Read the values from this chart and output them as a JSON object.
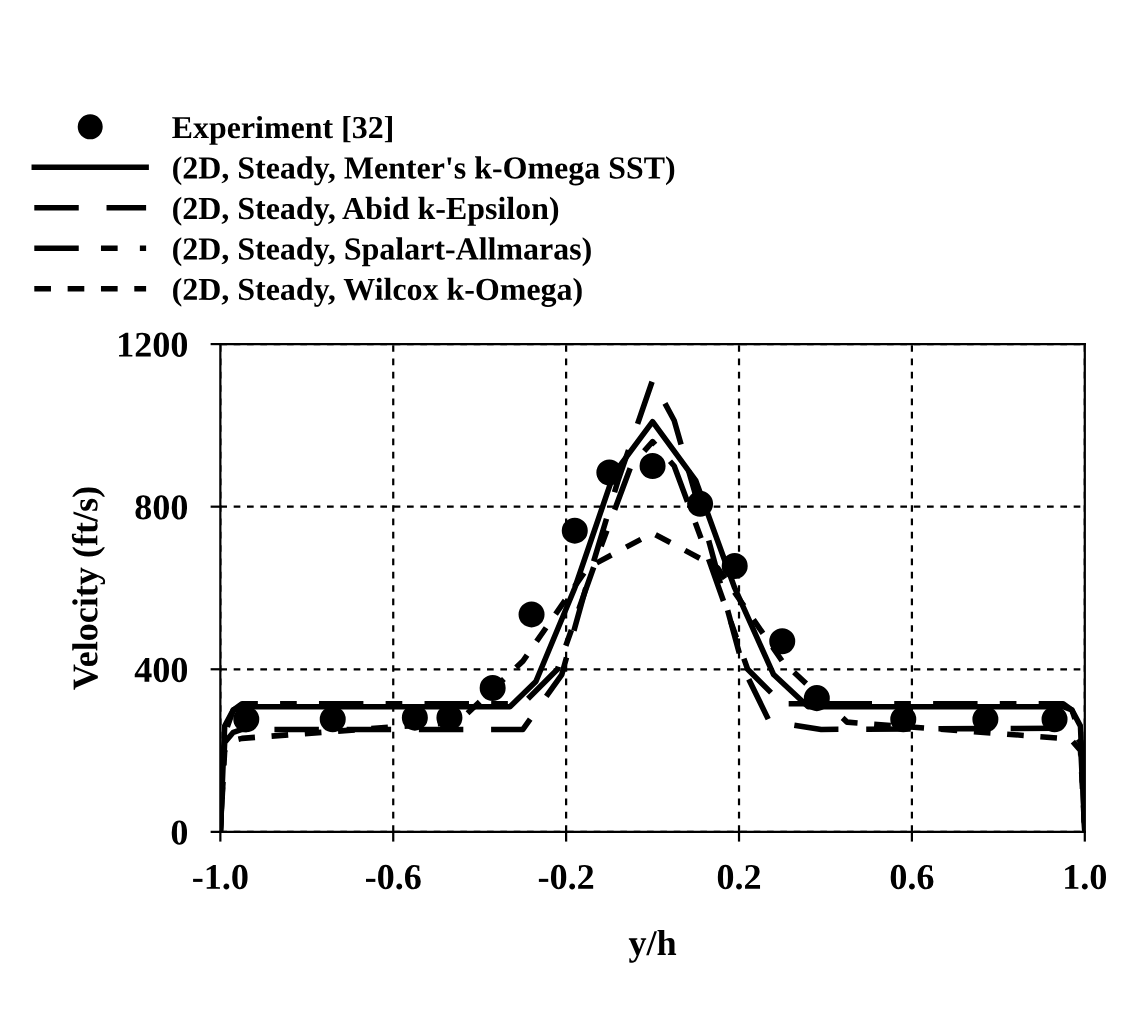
{
  "chart_data": {
    "type": "line",
    "xlabel": "y/h",
    "ylabel": "Velocity (ft/s)",
    "xlim": [
      -1,
      1
    ],
    "xticks": [
      {
        "value": -1,
        "label": "-1.0"
      },
      {
        "value": -0.6,
        "label": "-0.6"
      },
      {
        "value": -0.2,
        "label": "-0.2"
      },
      {
        "value": 0.2,
        "label": "0.2"
      },
      {
        "value": 0.6,
        "label": "0.6"
      },
      {
        "value": 1,
        "label": "1.0"
      }
    ],
    "ylim": [
      0,
      1200
    ],
    "yticks": [
      0,
      400,
      800,
      1200
    ],
    "grid": true,
    "legend": "top",
    "series": [
      {
        "name": "Experiment [32]",
        "type": "scatter",
        "marker": "circle",
        "color": "#000000",
        "x": [
          -0.94,
          -0.74,
          -0.55,
          -0.47,
          -0.37,
          -0.28,
          -0.18,
          -0.1,
          0.0,
          0.11,
          0.19,
          0.3,
          0.38,
          0.58,
          0.77,
          0.93
        ],
        "values": [
          277,
          277,
          281,
          281,
          354,
          535,
          741,
          884,
          900,
          807,
          654,
          469,
          329,
          277,
          277,
          277
        ]
      },
      {
        "name": "(2D, Steady, Menter's k-Omega SST)",
        "line_style": "solid",
        "color": "#000000",
        "x": [
          -1,
          -0.99,
          -0.97,
          -0.95,
          -0.33,
          -0.27,
          -0.18,
          -0.09,
          0,
          0.1,
          0.19,
          0.28,
          0.36,
          0.95,
          0.97,
          0.99,
          1
        ],
        "values": [
          0,
          260,
          300,
          308,
          308,
          370,
          600,
          880,
          1009,
          864,
          600,
          387,
          308,
          308,
          300,
          260,
          0
        ]
      },
      {
        "name": "(2D, Steady, Abid k-Epsilon)",
        "line_style": "longdash",
        "color": "#000000",
        "x": [
          -1,
          -0.99,
          -0.97,
          -0.95,
          -0.3,
          -0.21,
          -0.15,
          -0.08,
          0,
          0.05,
          0.13,
          0.21,
          0.27,
          0.39,
          0.95,
          0.97,
          0.99,
          1
        ],
        "values": [
          0,
          220,
          245,
          252,
          252,
          387,
          617,
          864,
          1111,
          1012,
          716,
          403,
          272,
          252,
          255,
          250,
          220,
          0
        ]
      },
      {
        "name": "(2D, Steady, Spalart-Allmaras)",
        "line_style": "dashdot",
        "color": "#000000",
        "x": [
          -1,
          -0.99,
          -0.97,
          -0.95,
          -0.3,
          -0.22,
          -0.12,
          -0.05,
          0,
          0.05,
          0.12,
          0.22,
          0.3,
          0.95,
          0.97,
          0.99,
          1
        ],
        "values": [
          0,
          240,
          300,
          315,
          315,
          400,
          700,
          900,
          960,
          900,
          700,
          400,
          315,
          315,
          300,
          240,
          0
        ]
      },
      {
        "name": "(2D, Steady, Wilcox k-Omega)",
        "line_style": "dashed",
        "color": "#000000",
        "x": [
          -1,
          -0.99,
          -0.97,
          -0.95,
          -0.45,
          -0.3,
          -0.15,
          0,
          0.15,
          0.3,
          0.45,
          0.95,
          0.97,
          0.99,
          1
        ],
        "values": [
          0,
          200,
          225,
          230,
          270,
          420,
          650,
          735,
          650,
          420,
          270,
          230,
          225,
          200,
          0
        ]
      }
    ]
  }
}
